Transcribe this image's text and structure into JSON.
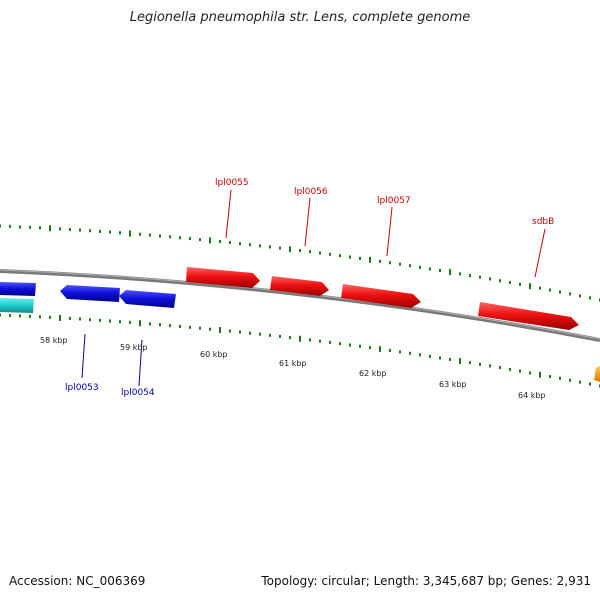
{
  "title": "Legionella pneumophila str. Lens, complete genome",
  "footer": {
    "accession": "Accession: NC_006369",
    "summary": "Topology: circular; Length: 3,345,687 bp; Genes: 2,931"
  },
  "colors": {
    "forward_gene": "#ee1111",
    "reverse_gene": "#1111dd",
    "cyan_gene": "#22cccc",
    "orange_gene": "#ff9900",
    "tick": "#1a7a1a",
    "backbone": "#808080",
    "forward_label": "#cc0000",
    "reverse_label": "#0000aa"
  },
  "scale": {
    "labels": [
      "58 kbp",
      "59 kbp",
      "60 kbp",
      "61 kbp",
      "62 kbp",
      "63 kbp",
      "64 kbp"
    ]
  },
  "features": {
    "forward": [
      {
        "name": "lpl0055"
      },
      {
        "name": "lpl0056"
      },
      {
        "name": "lpl0057"
      },
      {
        "name": "sdbB"
      }
    ],
    "reverse": [
      {
        "name": "lpl0053"
      },
      {
        "name": "lpl0054"
      }
    ]
  }
}
